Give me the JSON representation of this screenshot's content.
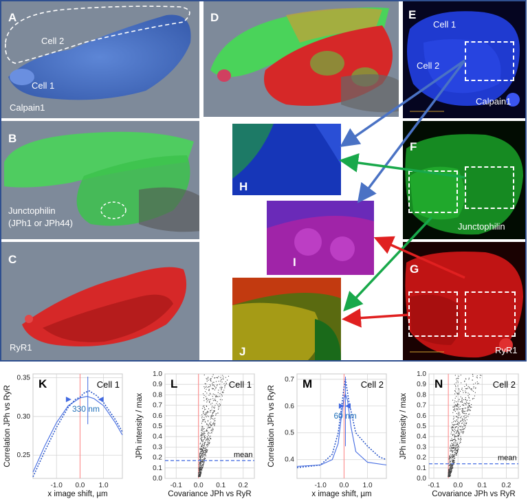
{
  "panels": {
    "A": {
      "letter": "A",
      "cell2": "Cell 2",
      "cell1": "Cell 1",
      "caption": "Calpain1"
    },
    "B": {
      "letter": "B",
      "caption1": "Junctophilin",
      "caption2": "(JPh1 or JPh44)"
    },
    "C": {
      "letter": "C",
      "caption": "RyR1"
    },
    "D": {
      "letter": "D"
    },
    "E": {
      "letter": "E",
      "cell1": "Cell 1",
      "cell2": "Cell 2",
      "caption": "Calpain1"
    },
    "F": {
      "letter": "F",
      "caption": "Junctophilin"
    },
    "G": {
      "letter": "G",
      "caption": "RyR1"
    },
    "H": {
      "letter": "H"
    },
    "I": {
      "letter": "I"
    },
    "J": {
      "letter": "J"
    }
  },
  "plots": {
    "K": {
      "letter": "K",
      "cell": "Cell 1",
      "ylabel": "Correlation JPh vs RyR",
      "xlabel": "x image shift, µm",
      "annotation": "330 nm",
      "yticks": [
        "0.35",
        "0.30",
        "0.25"
      ],
      "xticks": [
        "-1.0",
        "0.0",
        "1.0"
      ]
    },
    "L": {
      "letter": "L",
      "cell": "Cell 1",
      "ylabel": "JPh intensity / max",
      "xlabel": "Covariance JPh vs RyR",
      "mean": "mean",
      "yticks": [
        "1.0",
        "0.9",
        "0.8",
        "0.7",
        "0.6",
        "0.5",
        "0.4",
        "0.3",
        "0.2",
        "0.1",
        "0.0"
      ],
      "xticks": [
        "-0.1",
        "0.0",
        "0.1",
        "0.2"
      ]
    },
    "M": {
      "letter": "M",
      "cell": "Cell 2",
      "ylabel": "Correlation JPh vs RyR",
      "xlabel": "x image shift, µm",
      "annotation": "60 nm",
      "yticks": [
        "0.7",
        "0.6",
        "0.5",
        "0.4"
      ],
      "xticks": [
        "-1.0",
        "0.0",
        "1.0"
      ]
    },
    "N": {
      "letter": "N",
      "cell": "Cell 2",
      "ylabel": "JPh intensity / max",
      "xlabel": "Covariance JPh vs RyR",
      "mean": "mean",
      "yticks": [
        "1.0",
        "0.9",
        "0.8",
        "0.7",
        "0.6",
        "0.5",
        "0.4",
        "0.3",
        "0.2",
        "0.1",
        "0.0"
      ],
      "xticks": [
        "-0.1",
        "0.0",
        "0.1",
        "0.2"
      ]
    }
  },
  "chart_data": [
    {
      "type": "line",
      "panel": "K",
      "title": "Cell 1",
      "xlabel": "x image shift, µm",
      "ylabel": "Correlation JPh vs RyR",
      "xlim": [
        -2.0,
        1.8
      ],
      "ylim": [
        0.22,
        0.355
      ],
      "series": [
        {
          "x": [
            -2.0,
            -1.5,
            -1.0,
            -0.5,
            0.0,
            0.3,
            0.6,
            1.0,
            1.5,
            1.8
          ],
          "y": [
            0.228,
            0.262,
            0.292,
            0.314,
            0.324,
            0.326,
            0.323,
            0.314,
            0.292,
            0.276
          ]
        },
        {
          "x": [
            -2.0,
            -1.5,
            -1.0,
            -0.5,
            -0.2,
            0.0,
            0.2,
            0.4,
            0.7,
            1.0,
            1.5,
            1.8
          ],
          "y": [
            0.222,
            0.255,
            0.286,
            0.312,
            0.322,
            0.325,
            0.331,
            0.333,
            0.327,
            0.318,
            0.296,
            0.28
          ]
        }
      ],
      "annotation": "330 nm",
      "peak_x": 0.33,
      "grid": true
    },
    {
      "type": "scatter",
      "panel": "L",
      "title": "Cell 1",
      "xlabel": "Covariance JPh vs RyR",
      "ylabel": "JPh intensity / max",
      "xlim": [
        -0.15,
        0.25
      ],
      "ylim": [
        0.0,
        1.0
      ],
      "mean_y": 0.17,
      "grid": true
    },
    {
      "type": "line",
      "panel": "M",
      "title": "Cell 2",
      "xlabel": "x image shift, µm",
      "ylabel": "Correlation JPh vs RyR",
      "xlim": [
        -2.0,
        1.8
      ],
      "ylim": [
        0.33,
        0.72
      ],
      "series": [
        {
          "x": [
            -2.0,
            -1.0,
            -0.5,
            -0.25,
            -0.1,
            0.0,
            0.06,
            0.15,
            0.3,
            0.5,
            1.0,
            1.8
          ],
          "y": [
            0.375,
            0.38,
            0.4,
            0.46,
            0.57,
            0.63,
            0.645,
            0.62,
            0.52,
            0.43,
            0.39,
            0.38
          ]
        },
        {
          "x": [
            -2.0,
            -1.0,
            -0.5,
            -0.25,
            -0.1,
            0.0,
            0.06,
            0.2,
            0.5,
            1.0,
            1.5,
            1.8
          ],
          "y": [
            0.37,
            0.38,
            0.42,
            0.5,
            0.6,
            0.67,
            0.7,
            0.62,
            0.5,
            0.45,
            0.41,
            0.4
          ]
        }
      ],
      "annotation": "60 nm",
      "peak_x": 0.06,
      "grid": true
    },
    {
      "type": "scatter",
      "panel": "N",
      "title": "Cell 2",
      "xlabel": "Covariance JPh vs RyR",
      "ylabel": "JPh intensity / max",
      "xlim": [
        -0.12,
        0.25
      ],
      "ylim": [
        0.0,
        1.0
      ],
      "mean_y": 0.14,
      "grid": true
    }
  ],
  "colors": {
    "frame": "#2f4f8f",
    "curve": "#4169e1",
    "redline": "#ff8080",
    "meanline": "#4169e1",
    "arrow_blue": "#4a72c4",
    "arrow_green": "#18a84a",
    "arrow_red": "#e02020"
  }
}
